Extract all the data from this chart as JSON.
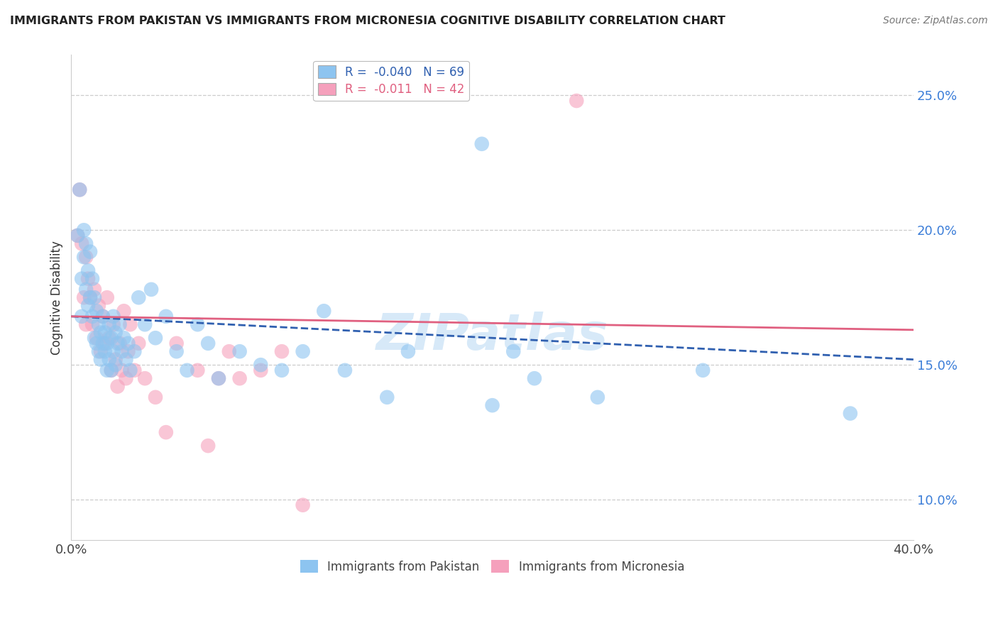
{
  "title": "IMMIGRANTS FROM PAKISTAN VS IMMIGRANTS FROM MICRONESIA COGNITIVE DISABILITY CORRELATION CHART",
  "source": "Source: ZipAtlas.com",
  "ylabel": "Cognitive Disability",
  "y_ticks": [
    0.1,
    0.15,
    0.2,
    0.25
  ],
  "y_tick_labels": [
    "10.0%",
    "15.0%",
    "20.0%",
    "25.0%"
  ],
  "xlim": [
    0.0,
    0.4
  ],
  "ylim": [
    0.085,
    0.265
  ],
  "pakistan_color": "#8DC4F0",
  "micronesia_color": "#F5A0BC",
  "pakistan_line_color": "#3060B0",
  "micronesia_line_color": "#E06080",
  "watermark": "ZIPatlas",
  "pak_line_y0": 0.168,
  "pak_line_y1": 0.152,
  "mic_line_y0": 0.168,
  "mic_line_y1": 0.163,
  "pakistan_points": [
    [
      0.003,
      0.198
    ],
    [
      0.004,
      0.215
    ],
    [
      0.005,
      0.182
    ],
    [
      0.005,
      0.168
    ],
    [
      0.006,
      0.2
    ],
    [
      0.006,
      0.19
    ],
    [
      0.007,
      0.178
    ],
    [
      0.007,
      0.195
    ],
    [
      0.008,
      0.185
    ],
    [
      0.008,
      0.172
    ],
    [
      0.009,
      0.192
    ],
    [
      0.009,
      0.175
    ],
    [
      0.01,
      0.168
    ],
    [
      0.01,
      0.182
    ],
    [
      0.011,
      0.175
    ],
    [
      0.011,
      0.16
    ],
    [
      0.012,
      0.17
    ],
    [
      0.012,
      0.158
    ],
    [
      0.013,
      0.165
    ],
    [
      0.013,
      0.155
    ],
    [
      0.014,
      0.162
    ],
    [
      0.014,
      0.152
    ],
    [
      0.015,
      0.168
    ],
    [
      0.015,
      0.158
    ],
    [
      0.016,
      0.162
    ],
    [
      0.016,
      0.155
    ],
    [
      0.017,
      0.158
    ],
    [
      0.017,
      0.148
    ],
    [
      0.018,
      0.165
    ],
    [
      0.018,
      0.152
    ],
    [
      0.019,
      0.16
    ],
    [
      0.019,
      0.148
    ],
    [
      0.02,
      0.168
    ],
    [
      0.02,
      0.155
    ],
    [
      0.021,
      0.162
    ],
    [
      0.021,
      0.15
    ],
    [
      0.022,
      0.158
    ],
    [
      0.023,
      0.165
    ],
    [
      0.024,
      0.155
    ],
    [
      0.025,
      0.16
    ],
    [
      0.026,
      0.152
    ],
    [
      0.027,
      0.158
    ],
    [
      0.028,
      0.148
    ],
    [
      0.03,
      0.155
    ],
    [
      0.032,
      0.175
    ],
    [
      0.035,
      0.165
    ],
    [
      0.038,
      0.178
    ],
    [
      0.04,
      0.16
    ],
    [
      0.045,
      0.168
    ],
    [
      0.05,
      0.155
    ],
    [
      0.055,
      0.148
    ],
    [
      0.06,
      0.165
    ],
    [
      0.065,
      0.158
    ],
    [
      0.07,
      0.145
    ],
    [
      0.08,
      0.155
    ],
    [
      0.09,
      0.15
    ],
    [
      0.1,
      0.148
    ],
    [
      0.11,
      0.155
    ],
    [
      0.12,
      0.17
    ],
    [
      0.13,
      0.148
    ],
    [
      0.15,
      0.138
    ],
    [
      0.16,
      0.155
    ],
    [
      0.195,
      0.232
    ],
    [
      0.2,
      0.135
    ],
    [
      0.21,
      0.155
    ],
    [
      0.22,
      0.145
    ],
    [
      0.25,
      0.138
    ],
    [
      0.3,
      0.148
    ],
    [
      0.37,
      0.132
    ]
  ],
  "micronesia_points": [
    [
      0.003,
      0.198
    ],
    [
      0.004,
      0.215
    ],
    [
      0.005,
      0.195
    ],
    [
      0.006,
      0.175
    ],
    [
      0.007,
      0.19
    ],
    [
      0.007,
      0.165
    ],
    [
      0.008,
      0.182
    ],
    [
      0.009,
      0.175
    ],
    [
      0.01,
      0.165
    ],
    [
      0.011,
      0.178
    ],
    [
      0.012,
      0.16
    ],
    [
      0.013,
      0.172
    ],
    [
      0.014,
      0.155
    ],
    [
      0.015,
      0.168
    ],
    [
      0.016,
      0.158
    ],
    [
      0.017,
      0.175
    ],
    [
      0.018,
      0.16
    ],
    [
      0.019,
      0.148
    ],
    [
      0.02,
      0.165
    ],
    [
      0.021,
      0.152
    ],
    [
      0.022,
      0.142
    ],
    [
      0.023,
      0.158
    ],
    [
      0.024,
      0.148
    ],
    [
      0.025,
      0.17
    ],
    [
      0.026,
      0.145
    ],
    [
      0.027,
      0.155
    ],
    [
      0.028,
      0.165
    ],
    [
      0.03,
      0.148
    ],
    [
      0.032,
      0.158
    ],
    [
      0.035,
      0.145
    ],
    [
      0.04,
      0.138
    ],
    [
      0.045,
      0.125
    ],
    [
      0.05,
      0.158
    ],
    [
      0.06,
      0.148
    ],
    [
      0.065,
      0.12
    ],
    [
      0.07,
      0.145
    ],
    [
      0.075,
      0.155
    ],
    [
      0.08,
      0.145
    ],
    [
      0.09,
      0.148
    ],
    [
      0.1,
      0.155
    ],
    [
      0.11,
      0.098
    ],
    [
      0.24,
      0.248
    ]
  ]
}
